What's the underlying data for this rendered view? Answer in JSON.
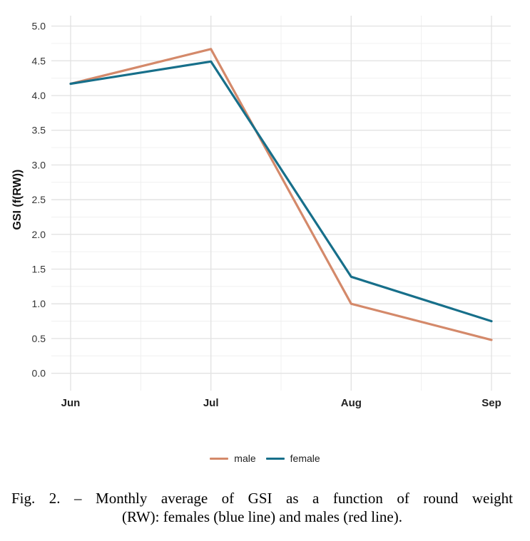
{
  "chart_data": {
    "type": "line",
    "title": "",
    "xlabel": "",
    "ylabel": "GSI (f(RW))",
    "categories": [
      "Jun",
      "Jul",
      "Aug",
      "Sep"
    ],
    "ylim": [
      -0.25,
      5.15
    ],
    "yticks": [
      "0.0",
      "0.5",
      "1.0",
      "1.5",
      "2.0",
      "2.5",
      "3.0",
      "3.5",
      "4.0",
      "4.5",
      "5.0"
    ],
    "grid": true,
    "legend_position": "bottom",
    "series": [
      {
        "name": "male",
        "color": "#d4896a",
        "values": [
          4.17,
          4.67,
          1.0,
          0.48
        ]
      },
      {
        "name": "female",
        "color": "#176f8a",
        "values": [
          4.17,
          4.49,
          1.39,
          0.75
        ]
      }
    ]
  },
  "caption": {
    "line1": "Fig. 2. – Monthly average of GSI as a function of round weight",
    "line2": "(RW): females (blue line) and males (red line)."
  }
}
